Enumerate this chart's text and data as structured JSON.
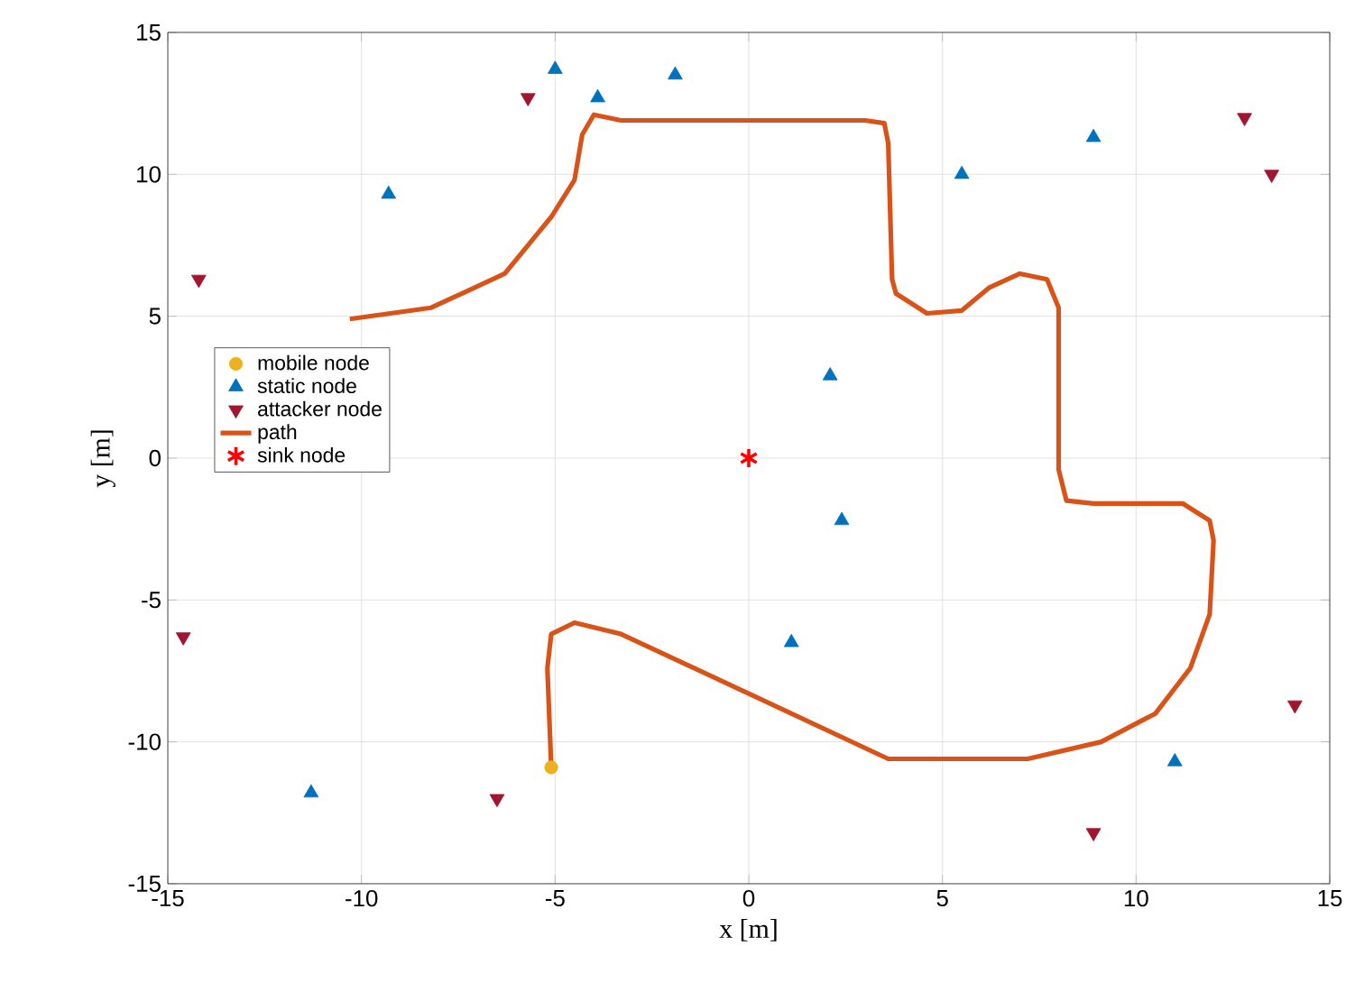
{
  "chart_data": {
    "type": "scatter",
    "xlabel": "x [m]",
    "ylabel": "y [m]",
    "xlim": [
      -15,
      15
    ],
    "ylim": [
      -15,
      15
    ],
    "xticks": [
      -15,
      -10,
      -5,
      0,
      5,
      10,
      15
    ],
    "yticks": [
      -15,
      -10,
      -5,
      0,
      5,
      10,
      15
    ],
    "grid": true,
    "legend": "left",
    "series": [
      {
        "name": "mobile node",
        "type": "scatter",
        "marker": "circle",
        "color": "#edb120",
        "x": [
          -5.1
        ],
        "values": [
          -10.9
        ]
      },
      {
        "name": "static node",
        "type": "scatter",
        "marker": "triangle",
        "color": "#0072bd",
        "x": [
          -9.3,
          -5.0,
          -3.9,
          -1.9,
          5.5,
          8.9,
          2.1,
          2.4,
          1.1,
          -11.3,
          11.0
        ],
        "values": [
          9.3,
          13.7,
          12.7,
          13.5,
          10.0,
          11.3,
          2.9,
          -2.2,
          -6.5,
          -11.8,
          -10.7
        ]
      },
      {
        "name": "attacker node",
        "type": "scatter",
        "marker": "triangle-down",
        "color": "#a2142f",
        "x": [
          -14.2,
          -5.7,
          12.8,
          13.5,
          -14.6,
          -6.5,
          8.9,
          14.1
        ],
        "values": [
          6.3,
          12.7,
          12.0,
          10.0,
          -6.3,
          -12.0,
          -13.2,
          -8.7
        ]
      },
      {
        "name": "path",
        "type": "line",
        "marker": "none",
        "color": "#d95319",
        "x": [
          -10.3,
          -8.2,
          -6.3,
          -5.1,
          -4.5,
          -4.3,
          -4.0,
          -3.3,
          3.0,
          3.5,
          3.6,
          3.7,
          3.8,
          4.6,
          5.5,
          6.2,
          7.0,
          7.7,
          8.0,
          8.0,
          8.2,
          8.9,
          11.2,
          11.9,
          12.0,
          11.9,
          11.4,
          10.5,
          9.1,
          7.2,
          5.4,
          3.6,
          0.0,
          -3.3,
          -4.5,
          -5.1,
          -5.2,
          -5.1
        ],
        "values": [
          4.9,
          5.3,
          6.5,
          8.5,
          9.8,
          11.4,
          12.1,
          11.9,
          11.9,
          11.8,
          11.1,
          6.3,
          5.8,
          5.1,
          5.2,
          6.0,
          6.5,
          6.3,
          5.3,
          -0.4,
          -1.5,
          -1.6,
          -1.6,
          -2.2,
          -2.9,
          -5.5,
          -7.4,
          -9.0,
          -10.0,
          -10.6,
          -10.6,
          -10.6,
          -8.3,
          -6.2,
          -5.8,
          -6.2,
          -7.4,
          -10.9
        ]
      },
      {
        "name": "sink node",
        "type": "scatter",
        "marker": "cross",
        "color": "#ff0000",
        "x": [
          0
        ],
        "values": [
          0
        ]
      }
    ]
  }
}
